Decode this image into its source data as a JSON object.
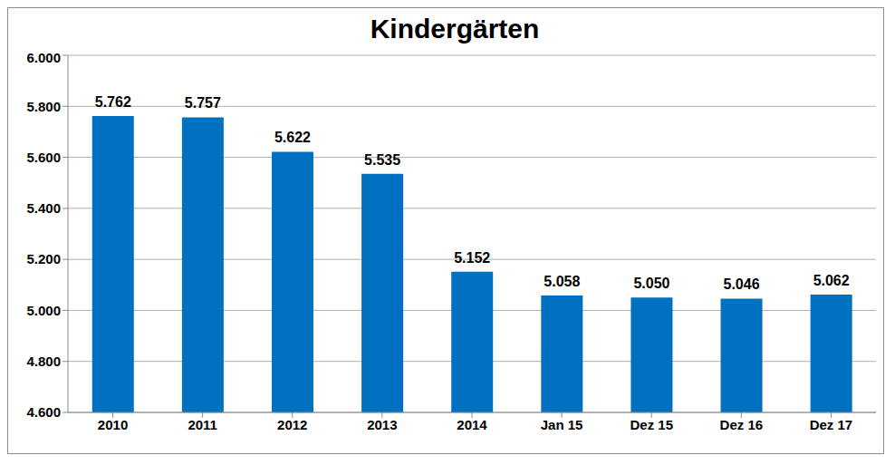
{
  "chart_data": {
    "type": "bar",
    "title": "Kindergärten",
    "categories": [
      "2010",
      "2011",
      "2012",
      "2013",
      "2014",
      "Jan 15",
      "Dez 15",
      "Dez 16",
      "Dez 17"
    ],
    "values": [
      5762,
      5757,
      5622,
      5535,
      5152,
      5058,
      5050,
      5046,
      5062
    ],
    "value_labels": [
      "5.762",
      "5.757",
      "5.622",
      "5.535",
      "5.152",
      "5.058",
      "5.050",
      "5.046",
      "5.062"
    ],
    "color": "#0070c0",
    "ylim": [
      4600,
      6000
    ],
    "yticks": [
      {
        "value": 4600,
        "label": "4.600"
      },
      {
        "value": 4800,
        "label": "4.800"
      },
      {
        "value": 5000,
        "label": "5.000"
      },
      {
        "value": 5200,
        "label": "5.200"
      },
      {
        "value": 5400,
        "label": "5.400"
      },
      {
        "value": 5600,
        "label": "5.600"
      },
      {
        "value": 5800,
        "label": "5.800"
      },
      {
        "value": 6000,
        "label": "6.000"
      }
    ],
    "grid": true,
    "data_labels": true
  }
}
